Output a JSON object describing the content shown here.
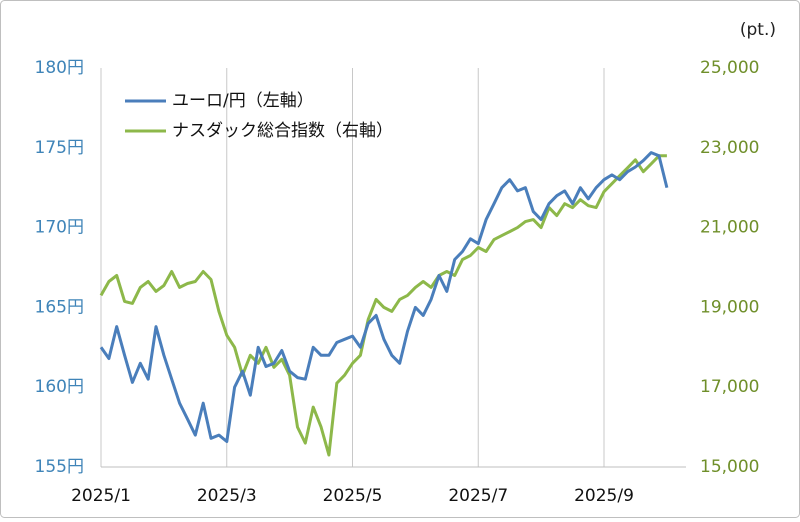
{
  "chart_data": {
    "type": "line",
    "unit_label": "(pt.)",
    "categories": [
      "2025/1",
      null,
      null,
      null,
      null,
      null,
      null,
      null,
      null,
      null,
      null,
      null,
      null,
      null,
      null,
      null,
      "2025/3",
      null,
      null,
      null,
      null,
      null,
      null,
      null,
      null,
      null,
      null,
      null,
      null,
      null,
      null,
      null,
      "2025/5",
      null,
      null,
      null,
      null,
      null,
      null,
      null,
      null,
      null,
      null,
      null,
      null,
      null,
      null,
      null,
      "2025/7",
      null,
      null,
      null,
      null,
      null,
      null,
      null,
      null,
      null,
      null,
      null,
      null,
      null,
      null,
      null,
      "2025/9",
      null,
      null,
      null,
      null,
      null,
      null,
      null,
      null
    ],
    "series": [
      {
        "name": "ユーロ/円（左軸）",
        "color": "#4a7ebb",
        "axis": "y",
        "values": [
          162.5,
          161.8,
          163.8,
          162.0,
          160.3,
          161.5,
          160.5,
          163.8,
          162.0,
          160.5,
          159.0,
          158.0,
          157.0,
          159.0,
          156.8,
          157.0,
          156.6,
          160.0,
          161.0,
          159.5,
          162.5,
          161.3,
          161.5,
          162.3,
          161.0,
          160.6,
          160.5,
          162.5,
          162.0,
          162.0,
          162.8,
          163.0,
          163.2,
          162.5,
          164.0,
          164.5,
          163.0,
          162.0,
          161.5,
          163.5,
          165.0,
          164.5,
          165.5,
          167.0,
          166.0,
          168.0,
          168.5,
          169.3,
          169.0,
          170.5,
          171.5,
          172.5,
          173.0,
          172.3,
          172.5,
          171.0,
          170.5,
          171.5,
          172.0,
          172.3,
          171.5,
          172.5,
          171.8,
          172.5,
          173.0,
          173.3,
          173.0,
          173.5,
          173.8,
          174.2,
          174.7,
          174.5,
          172.5
        ]
      },
      {
        "name": "ナスダック総合指数（右軸）",
        "color": "#8db84a",
        "axis": "y2",
        "values": [
          19300,
          19650,
          19800,
          19150,
          19100,
          19500,
          19650,
          19400,
          19550,
          19900,
          19500,
          19600,
          19650,
          19900,
          19700,
          18900,
          18300,
          18000,
          17300,
          17800,
          17600,
          18000,
          17500,
          17700,
          17300,
          16000,
          15600,
          16500,
          16000,
          15300,
          17100,
          17300,
          17600,
          17800,
          18700,
          19200,
          19000,
          18900,
          19200,
          19300,
          19500,
          19650,
          19500,
          19800,
          19900,
          19800,
          20200,
          20300,
          20500,
          20400,
          20700,
          20800,
          20900,
          21000,
          21150,
          21200,
          21000,
          21500,
          21300,
          21600,
          21500,
          21700,
          21550,
          21500,
          21900,
          22100,
          22300,
          22500,
          22700,
          22400,
          22600,
          22800,
          22800
        ]
      }
    ],
    "ylim": [
      155,
      180
    ],
    "yticks": [
      {
        "value": 155,
        "label": "155円"
      },
      {
        "value": 160,
        "label": "160円"
      },
      {
        "value": 165,
        "label": "165円"
      },
      {
        "value": 170,
        "label": "170円"
      },
      {
        "value": 175,
        "label": "175円"
      },
      {
        "value": 180,
        "label": "180円"
      }
    ],
    "y2lim": [
      15000,
      25000
    ],
    "y2ticks": [
      {
        "value": 15000,
        "label": "15,000"
      },
      {
        "value": 17000,
        "label": "17,000"
      },
      {
        "value": 19000,
        "label": "19,000"
      },
      {
        "value": 21000,
        "label": "21,000"
      },
      {
        "value": 23000,
        "label": "23,000"
      },
      {
        "value": 25000,
        "label": "25,000"
      }
    ],
    "grid": "x",
    "legend": "top-left"
  }
}
